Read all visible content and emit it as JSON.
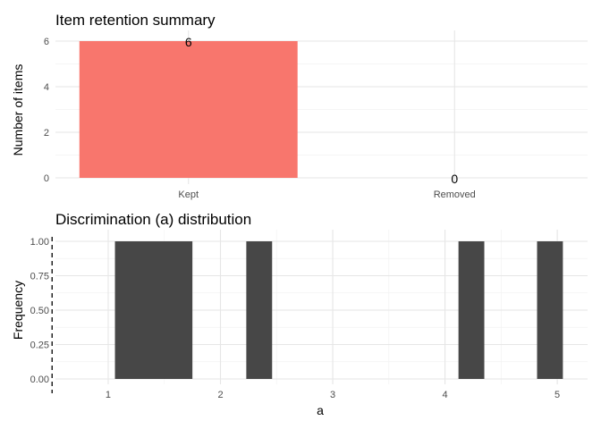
{
  "chart_data": [
    {
      "type": "bar",
      "title": "Item retention summary",
      "xlabel": "",
      "ylabel": "Number of items",
      "categories": [
        "Kept",
        "Removed"
      ],
      "values": [
        6,
        0
      ],
      "data_labels": [
        "6",
        "0"
      ],
      "ylim": [
        0,
        6
      ],
      "yticks": [
        0,
        2,
        4,
        6
      ],
      "ytick_labels": [
        "0",
        "2",
        "4",
        "6"
      ],
      "bar_color": "#F8766D",
      "grid": true
    },
    {
      "type": "bar",
      "title": "Discrimination (a) distribution",
      "xlabel": "a",
      "ylabel": "Frequency",
      "bins": [
        {
          "x0": 1.06,
          "x1": 1.75,
          "count": 1
        },
        {
          "x0": 2.23,
          "x1": 2.46,
          "count": 1
        },
        {
          "x0": 4.12,
          "x1": 4.35,
          "count": 1
        },
        {
          "x0": 4.82,
          "x1": 5.05,
          "count": 1
        }
      ],
      "reference_line_x": 0.5,
      "xlim": [
        0.53,
        5.27
      ],
      "xticks": [
        1,
        2,
        3,
        4,
        5
      ],
      "xtick_labels": [
        "1",
        "2",
        "3",
        "4",
        "5"
      ],
      "ylim": [
        0,
        1
      ],
      "yticks": [
        0,
        0.25,
        0.5,
        0.75,
        1
      ],
      "ytick_labels": [
        "0.00",
        "0.25",
        "0.50",
        "0.75",
        "1.00"
      ],
      "bar_color": "#474747",
      "grid": true
    }
  ]
}
